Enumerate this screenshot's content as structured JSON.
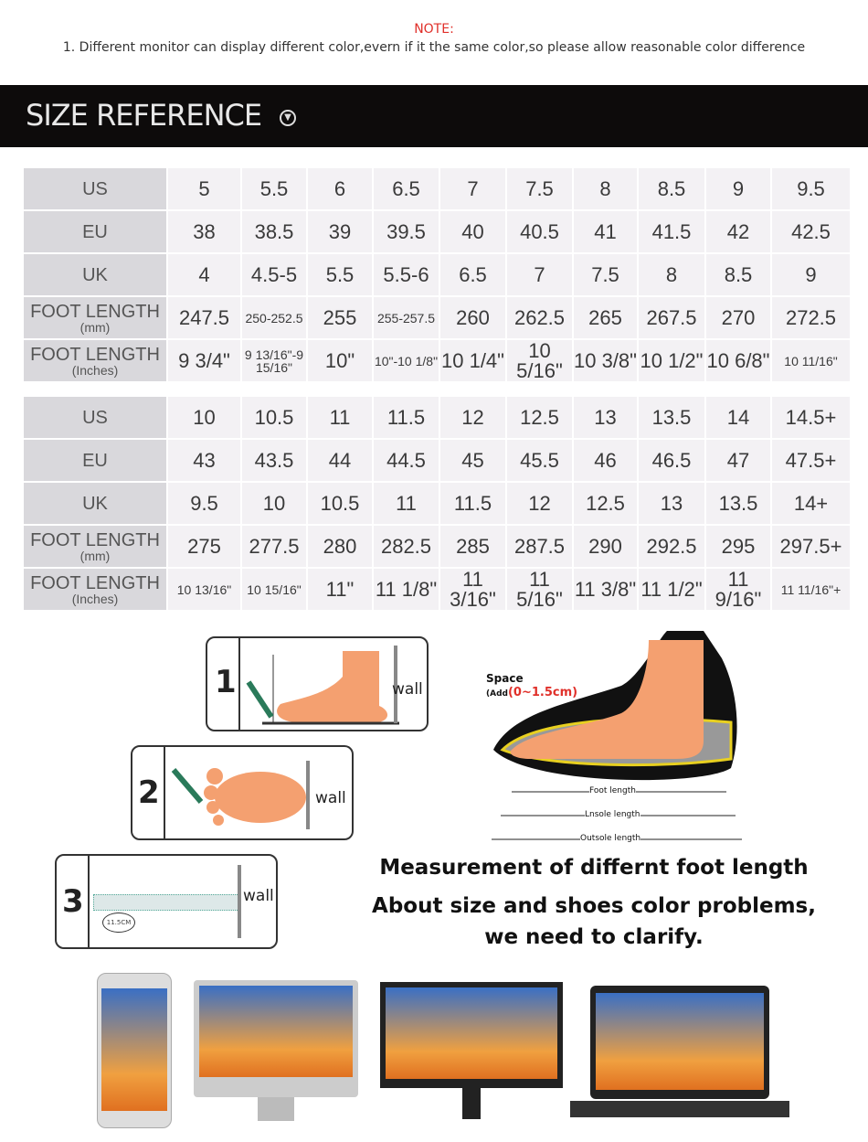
{
  "note": {
    "title": "NOTE:",
    "text": "1. Different monitor can display different color,evern if it the same color,so please allow reasonable color difference"
  },
  "banner": {
    "title": "SIZE REFERENCE",
    "icon": "chevron-down-circle-icon"
  },
  "table1": {
    "rows": [
      {
        "label": "US",
        "values": [
          "5",
          "5.5",
          "6",
          "6.5",
          "7",
          "7.5",
          "8",
          "8.5",
          "9",
          "9.5"
        ]
      },
      {
        "label": "EU",
        "values": [
          "38",
          "38.5",
          "39",
          "39.5",
          "40",
          "40.5",
          "41",
          "41.5",
          "42",
          "42.5"
        ]
      },
      {
        "label": "UK",
        "values": [
          "4",
          "4.5-5",
          "5.5",
          "5.5-6",
          "6.5",
          "7",
          "7.5",
          "8",
          "8.5",
          "9"
        ]
      },
      {
        "label": "FOOT LENGTH",
        "sub": "(mm)",
        "values": [
          "247.5",
          "250-252.5",
          "255",
          "255-257.5",
          "260",
          "262.5",
          "265",
          "267.5",
          "270",
          "272.5"
        ]
      },
      {
        "label": "FOOT LENGTH",
        "sub": "(Inches)",
        "values": [
          "9 3/4\"",
          "9 13/16\"-9 15/16\"",
          "10\"",
          "10\"-10 1/8\"",
          "10 1/4\"",
          "10 5/16\"",
          "10 3/8\"",
          "10 1/2\"",
          "10 6/8\"",
          "10 11/16\""
        ]
      }
    ]
  },
  "table2": {
    "rows": [
      {
        "label": "US",
        "values": [
          "10",
          "10.5",
          "11",
          "11.5",
          "12",
          "12.5",
          "13",
          "13.5",
          "14",
          "14.5+"
        ]
      },
      {
        "label": "EU",
        "values": [
          "43",
          "43.5",
          "44",
          "44.5",
          "45",
          "45.5",
          "46",
          "46.5",
          "47",
          "47.5+"
        ]
      },
      {
        "label": "UK",
        "values": [
          "9.5",
          "10",
          "10.5",
          "11",
          "11.5",
          "12",
          "12.5",
          "13",
          "13.5",
          "14+"
        ]
      },
      {
        "label": "FOOT LENGTH",
        "sub": "(mm)",
        "values": [
          "275",
          "277.5",
          "280",
          "282.5",
          "285",
          "287.5",
          "290",
          "292.5",
          "295",
          "297.5+"
        ]
      },
      {
        "label": "FOOT LENGTH",
        "sub": "(Inches)",
        "values": [
          "10 13/16\"",
          "10 15/16\"",
          "11\"",
          "11 1/8\"",
          "11 3/16\"",
          "11 5/16\"",
          "11 3/8\"",
          "11 1/2\"",
          "11 9/16\"",
          "11 11/16\"+"
        ]
      }
    ]
  },
  "steps": [
    {
      "num": "1",
      "wall": "wall"
    },
    {
      "num": "2",
      "wall": "wall"
    },
    {
      "num": "3",
      "wall": "wall",
      "ruler": "11.5CM"
    }
  ],
  "diagram": {
    "space": "Space",
    "add": "(Add",
    "range": "(0~1.5cm)",
    "foot_length": "Foot length",
    "insole_length": "Lnsole length",
    "outsole_length": "Outsole length"
  },
  "measurement": {
    "line1": "Measurement of differnt foot length",
    "line2": "About size and shoes color problems,",
    "line3": "we need to clarify."
  }
}
